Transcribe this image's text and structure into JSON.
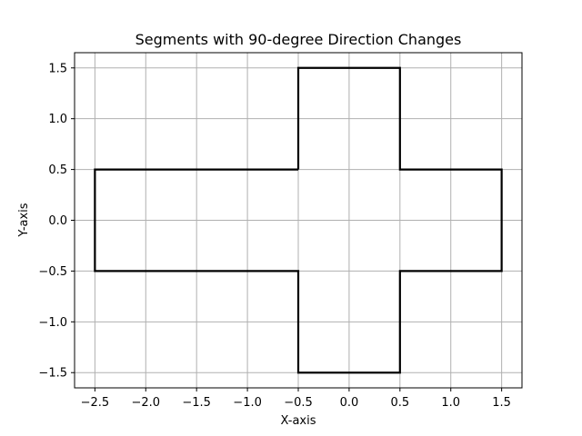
{
  "chart_data": {
    "type": "line",
    "title": "Segments with 90-degree Direction Changes",
    "xlabel": "X-axis",
    "ylabel": "Y-axis",
    "xlim": [
      -2.7,
      1.7
    ],
    "ylim": [
      -1.65,
      1.65
    ],
    "x_ticks": [
      -2.5,
      -2.0,
      -1.5,
      -1.0,
      -0.5,
      0.0,
      0.5,
      1.0,
      1.5
    ],
    "x_tick_labels": [
      "−2.5",
      "−2.0",
      "−1.5",
      "−1.0",
      "−0.5",
      "0.0",
      "0.5",
      "1.0",
      "1.5"
    ],
    "y_ticks": [
      -1.5,
      -1.0,
      -0.5,
      0.0,
      0.5,
      1.0,
      1.5
    ],
    "y_tick_labels": [
      "−1.5",
      "−1.0",
      "−0.5",
      "0.0",
      "0.5",
      "1.0",
      "1.5"
    ],
    "grid": true,
    "series": [
      {
        "color": "#000000",
        "points": [
          [
            -0.5,
            0.5
          ],
          [
            -0.5,
            1.5
          ],
          [
            0.5,
            1.5
          ],
          [
            0.5,
            0.5
          ],
          [
            1.5,
            0.5
          ],
          [
            1.5,
            -0.5
          ],
          [
            0.5,
            -0.5
          ],
          [
            0.5,
            -1.5
          ],
          [
            -0.5,
            -1.5
          ],
          [
            -0.5,
            -0.5
          ],
          [
            -2.5,
            -0.5
          ],
          [
            -2.5,
            0.5
          ],
          [
            -0.5,
            0.5
          ]
        ]
      }
    ]
  }
}
